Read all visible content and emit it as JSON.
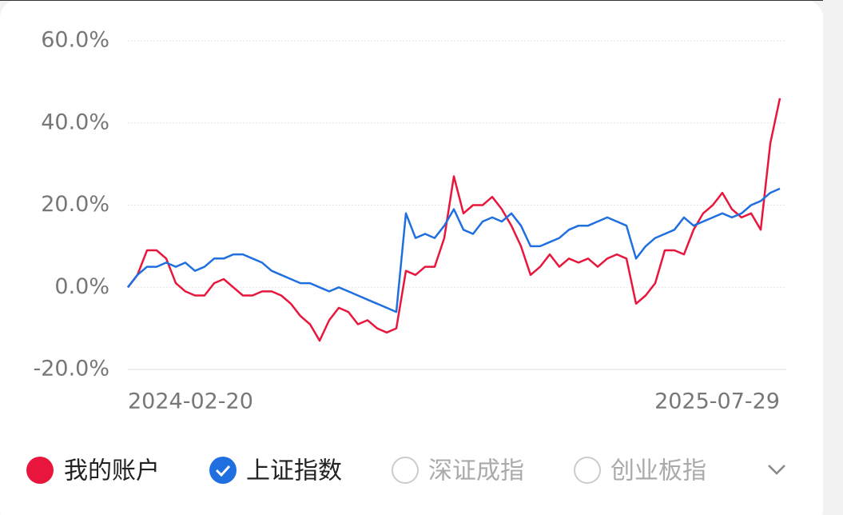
{
  "chart_data": {
    "type": "line",
    "categories": [
      "2024-02-20",
      null,
      null,
      null,
      null,
      null,
      null,
      null,
      null,
      null,
      null,
      null,
      null,
      null,
      null,
      null,
      null,
      null,
      null,
      null,
      null,
      null,
      null,
      null,
      null,
      null,
      null,
      null,
      null,
      null,
      null,
      null,
      null,
      null,
      null,
      null,
      null,
      null,
      null,
      null,
      null,
      null,
      null,
      null,
      null,
      null,
      null,
      null,
      null,
      null,
      null,
      null,
      null,
      null,
      null,
      null,
      null,
      null,
      null,
      null,
      null,
      null,
      null,
      null,
      null,
      null,
      null,
      null,
      "2025-07-29"
    ],
    "series": [
      {
        "name": "我的账户",
        "color": "#e8163c",
        "values": [
          0,
          3,
          9,
          9,
          7,
          1,
          -1,
          -2,
          -2,
          1,
          2,
          0,
          -2,
          -2,
          -1,
          -1,
          -2,
          -4,
          -7,
          -9,
          -13,
          -8,
          -5,
          -6,
          -9,
          -8,
          -10,
          -11,
          -10,
          4,
          3,
          5,
          5,
          12,
          27,
          18,
          20,
          20,
          22,
          19,
          15,
          10,
          3,
          5,
          8,
          5,
          7,
          6,
          7,
          5,
          7,
          8,
          7,
          -4,
          -2,
          1,
          9,
          9,
          8,
          14,
          18,
          20,
          23,
          19,
          17,
          18,
          14,
          35,
          46
        ]
      },
      {
        "name": "上证指数",
        "color": "#1f6fe0",
        "values": [
          0,
          3,
          5,
          5,
          6,
          5,
          6,
          4,
          5,
          7,
          7,
          8,
          8,
          7,
          6,
          4,
          3,
          2,
          1,
          1,
          0,
          -1,
          0,
          -1,
          -2,
          -3,
          -4,
          -5,
          -6,
          18,
          12,
          13,
          12,
          15,
          19,
          14,
          13,
          16,
          17,
          16,
          18,
          15,
          10,
          10,
          11,
          12,
          14,
          15,
          15,
          16,
          17,
          16,
          15,
          7,
          10,
          12,
          13,
          14,
          17,
          15,
          16,
          17,
          18,
          17,
          18,
          20,
          21,
          23,
          24
        ]
      }
    ],
    "other_indices": [
      "深证成指",
      "创业板指"
    ],
    "ylim": [
      -20,
      60
    ],
    "yticks": [
      {
        "value": -20,
        "label": "-20.0%"
      },
      {
        "value": 0,
        "label": "0.0%"
      },
      {
        "value": 20,
        "label": "20.0%"
      },
      {
        "value": 40,
        "label": "40.0%"
      },
      {
        "value": 60,
        "label": "60.0%"
      }
    ],
    "grid": true
  }
}
